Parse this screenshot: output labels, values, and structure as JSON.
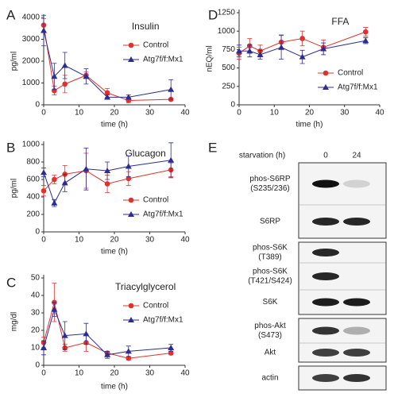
{
  "chart_data": [
    {
      "type": "line",
      "label": "A",
      "title": "Insulin",
      "y_label": "pg/ml",
      "x_label": "time (h)",
      "x": [
        0,
        3,
        6,
        12,
        18,
        24,
        36
      ],
      "xlim": [
        0,
        40
      ],
      "xticks": [
        0,
        10,
        20,
        30,
        40
      ],
      "ylim": [
        0,
        4000
      ],
      "yticks": [
        0,
        1000,
        2000,
        3000,
        4000
      ],
      "legend": "upper right",
      "series": [
        {
          "name": "Control",
          "color": "#e0322d",
          "marker": "circle",
          "values": [
            3650,
            650,
            950,
            1350,
            550,
            200,
            250
          ],
          "errors": [
            300,
            200,
            400,
            150,
            200,
            100,
            50
          ]
        },
        {
          "name": "Atg7f/f:Mx1",
          "color": "#2b2d8f",
          "marker": "triangle",
          "values": [
            3400,
            1300,
            1800,
            1300,
            350,
            350,
            700
          ],
          "errors": [
            700,
            600,
            600,
            350,
            100,
            100,
            450
          ]
        }
      ]
    },
    {
      "type": "line",
      "label": "B",
      "title": "Glucagon",
      "y_label": "pg/ml",
      "x_label": "time (h)",
      "x": [
        0,
        3,
        6,
        12,
        18,
        24,
        36
      ],
      "xlim": [
        0,
        40
      ],
      "xticks": [
        0,
        10,
        20,
        30,
        40
      ],
      "ylim": [
        0,
        1000
      ],
      "yticks": [
        0,
        200,
        400,
        600,
        800,
        1000
      ],
      "legend": "lower right",
      "series": [
        {
          "name": "Control",
          "color": "#e0322d",
          "marker": "circle",
          "values": [
            470,
            600,
            660,
            700,
            550,
            610,
            710
          ],
          "errors": [
            60,
            50,
            100,
            200,
            100,
            80,
            80
          ]
        },
        {
          "name": "Atg7f/f:Mx1",
          "color": "#2b2d8f",
          "marker": "triangle",
          "values": [
            680,
            330,
            560,
            720,
            700,
            750,
            820
          ],
          "errors": [
            50,
            40,
            100,
            240,
            100,
            120,
            200
          ]
        }
      ]
    },
    {
      "type": "line",
      "label": "C",
      "title": "Triacylglycerol",
      "y_label": "mg/dl",
      "x_label": "time (h)",
      "x": [
        0,
        3,
        6,
        12,
        18,
        24,
        36
      ],
      "xlim": [
        0,
        40
      ],
      "xticks": [
        0,
        10,
        20,
        30,
        40
      ],
      "ylim": [
        0,
        50
      ],
      "yticks": [
        0,
        10,
        20,
        30,
        40,
        50
      ],
      "legend": "upper right",
      "series": [
        {
          "name": "Control",
          "color": "#e0322d",
          "marker": "circle",
          "values": [
            13,
            36,
            10,
            13,
            7,
            4,
            7
          ],
          "errors": [
            3,
            11,
            2,
            5,
            1,
            1,
            1
          ]
        },
        {
          "name": "Atg7f/f:Mx1",
          "color": "#2b2d8f",
          "marker": "triangle",
          "values": [
            10,
            32,
            17,
            18,
            6,
            8,
            10
          ],
          "errors": [
            4,
            4,
            8,
            6,
            2,
            3,
            2
          ]
        }
      ]
    },
    {
      "type": "line",
      "label": "D",
      "title": "FFA",
      "y_label": "nEQ/ml",
      "x_label": "time (h)",
      "x": [
        0,
        3,
        6,
        12,
        18,
        24,
        36
      ],
      "xlim": [
        0,
        40
      ],
      "xticks": [
        0,
        10,
        20,
        30,
        40
      ],
      "ylim": [
        0,
        1250
      ],
      "yticks": [
        0,
        250,
        500,
        750,
        1000,
        1250
      ],
      "legend": "lower right",
      "series": [
        {
          "name": "Control",
          "color": "#e0322d",
          "marker": "circle",
          "values": [
            700,
            800,
            730,
            850,
            900,
            780,
            990
          ],
          "errors": [
            80,
            100,
            80,
            100,
            100,
            100,
            60
          ]
        },
        {
          "name": "Atg7f/f:Mx1",
          "color": "#2b2d8f",
          "marker": "triangle",
          "values": [
            730,
            730,
            680,
            780,
            650,
            760,
            870
          ],
          "errors": [
            80,
            80,
            60,
            160,
            90,
            80,
            40
          ]
        }
      ]
    }
  ],
  "blot": {
    "label": "E",
    "header": "starvation (h)",
    "columns": [
      "0",
      "24"
    ],
    "groups": [
      [
        {
          "lines": [
            "phos-S6RP",
            "(S235/236)"
          ]
        },
        {
          "lines": [
            "S6RP"
          ]
        }
      ],
      [
        {
          "lines": [
            "phos-S6K",
            "(T389)"
          ]
        },
        {
          "lines": [
            "phos-S6K",
            "(T421/S424)"
          ]
        },
        {
          "lines": [
            "S6K"
          ]
        }
      ],
      [
        {
          "lines": [
            "phos-Akt",
            "(S473)"
          ]
        },
        {
          "lines": [
            "Akt"
          ]
        }
      ],
      [
        {
          "lines": [
            "actin"
          ]
        }
      ]
    ]
  }
}
